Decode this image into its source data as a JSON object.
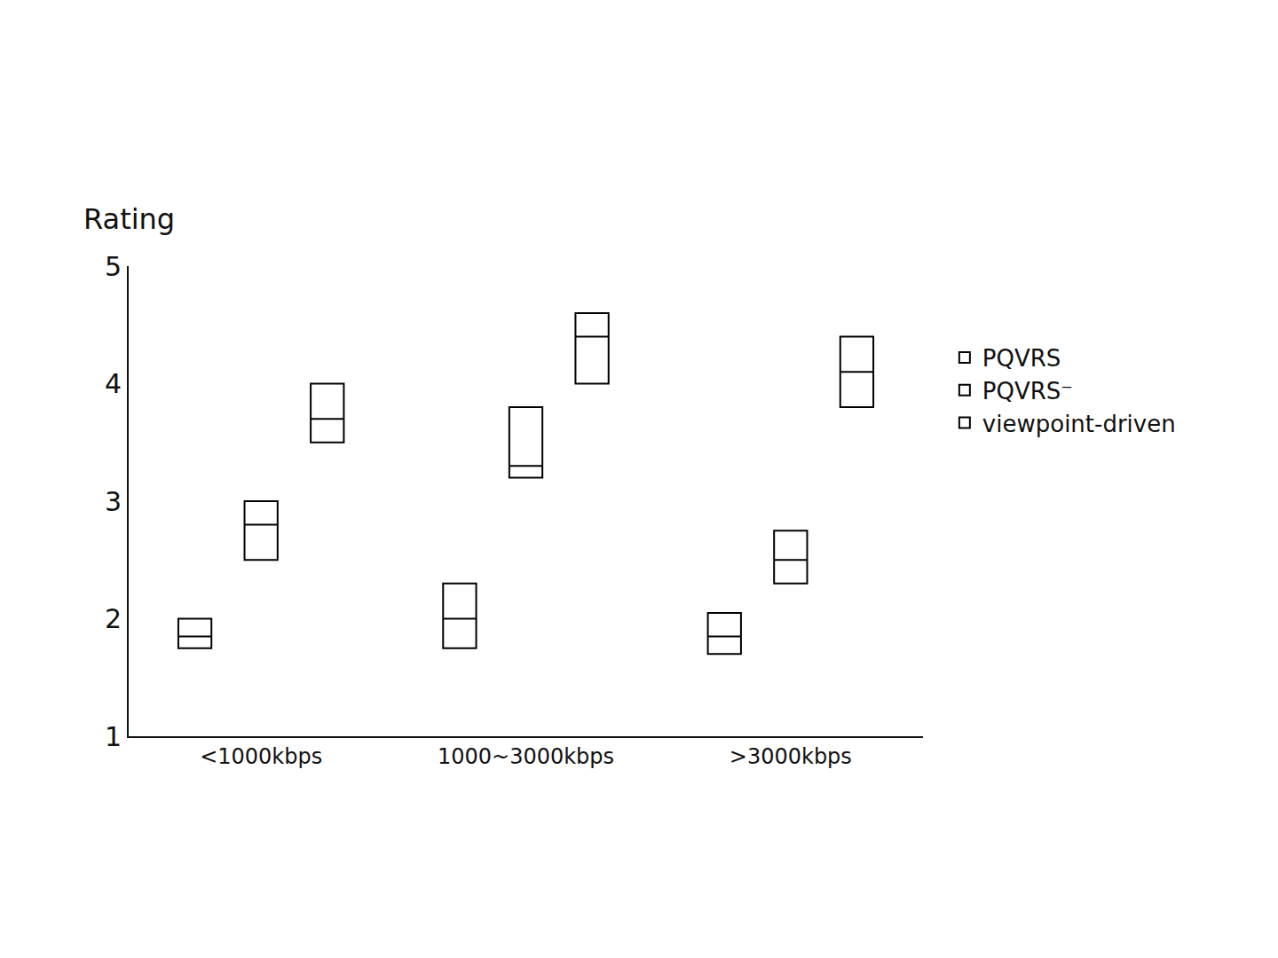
{
  "chart_data": {
    "type": "box",
    "y_label": "Rating",
    "categories": [
      "<1000kbps",
      "1000~3000kbps",
      ">3000kbps"
    ],
    "series": [
      {
        "name": "viewpoint-driven",
        "color": "#000000",
        "q1": [
          1.75,
          1.75,
          1.7
        ],
        "median": [
          1.85,
          2.0,
          1.85
        ],
        "q3": [
          2.0,
          2.3,
          2.05
        ]
      },
      {
        "name": "PQVRS⁻",
        "color": "#000000",
        "q1": [
          2.5,
          3.2,
          2.3
        ],
        "median": [
          2.8,
          3.3,
          2.5
        ],
        "q3": [
          3.0,
          3.8,
          2.75
        ]
      },
      {
        "name": "PQVRS",
        "color": "#000000",
        "q1": [
          3.5,
          4.0,
          3.8
        ],
        "median": [
          3.7,
          4.4,
          4.1
        ],
        "q3": [
          4.0,
          4.6,
          4.4
        ]
      }
    ],
    "ylim": [
      1,
      5
    ],
    "yticks": [
      1,
      2,
      3,
      4,
      5
    ],
    "grid": false,
    "legend": "right"
  }
}
